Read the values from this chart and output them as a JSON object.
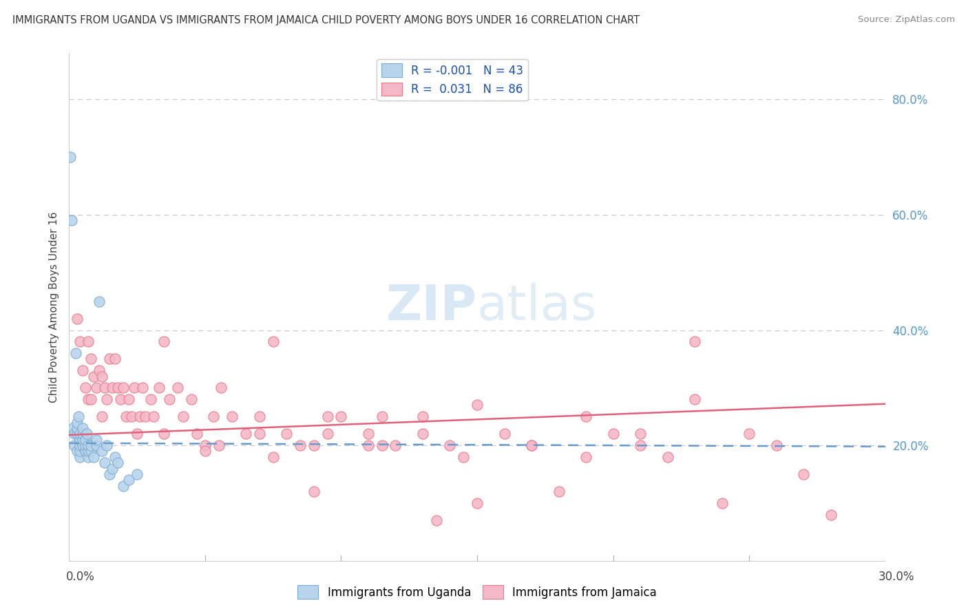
{
  "title": "IMMIGRANTS FROM UGANDA VS IMMIGRANTS FROM JAMAICA CHILD POVERTY AMONG BOYS UNDER 16 CORRELATION CHART",
  "source": "Source: ZipAtlas.com",
  "ylabel": "Child Poverty Among Boys Under 16",
  "legend1_label": "Immigrants from Uganda",
  "legend2_label": "Immigrants from Jamaica",
  "R_uganda": -0.001,
  "N_uganda": 43,
  "R_jamaica": 0.031,
  "N_jamaica": 86,
  "color_uganda_fill": "#b8d4ed",
  "color_uganda_edge": "#7aaace",
  "color_jamaica_fill": "#f5b8c8",
  "color_jamaica_edge": "#e8788a",
  "color_line_uganda": "#6699cc",
  "color_line_jamaica": "#e0607a",
  "xlim": [
    0.0,
    0.3
  ],
  "ylim": [
    0.0,
    0.88
  ],
  "ytick_vals": [
    0.2,
    0.4,
    0.6,
    0.8
  ],
  "ytick_labels": [
    "20.0%",
    "40.0%",
    "60.0%",
    "80.0%"
  ],
  "uganda_x": [
    0.0005,
    0.001,
    0.0015,
    0.002,
    0.002,
    0.0025,
    0.003,
    0.003,
    0.003,
    0.003,
    0.0035,
    0.004,
    0.004,
    0.004,
    0.004,
    0.004,
    0.005,
    0.005,
    0.005,
    0.005,
    0.006,
    0.006,
    0.006,
    0.0065,
    0.007,
    0.007,
    0.007,
    0.008,
    0.008,
    0.009,
    0.01,
    0.01,
    0.011,
    0.012,
    0.013,
    0.014,
    0.015,
    0.016,
    0.017,
    0.018,
    0.02,
    0.022,
    0.025
  ],
  "uganda_y": [
    0.7,
    0.59,
    0.23,
    0.2,
    0.22,
    0.36,
    0.19,
    0.22,
    0.23,
    0.24,
    0.25,
    0.18,
    0.19,
    0.2,
    0.21,
    0.22,
    0.2,
    0.21,
    0.22,
    0.23,
    0.19,
    0.2,
    0.21,
    0.22,
    0.18,
    0.19,
    0.2,
    0.19,
    0.2,
    0.18,
    0.2,
    0.21,
    0.45,
    0.19,
    0.17,
    0.2,
    0.15,
    0.16,
    0.18,
    0.17,
    0.13,
    0.14,
    0.15
  ],
  "jamaica_x": [
    0.003,
    0.004,
    0.005,
    0.006,
    0.007,
    0.007,
    0.008,
    0.008,
    0.009,
    0.01,
    0.011,
    0.012,
    0.012,
    0.013,
    0.014,
    0.015,
    0.016,
    0.017,
    0.018,
    0.019,
    0.02,
    0.021,
    0.022,
    0.023,
    0.024,
    0.025,
    0.026,
    0.027,
    0.028,
    0.03,
    0.031,
    0.033,
    0.035,
    0.037,
    0.04,
    0.042,
    0.045,
    0.047,
    0.05,
    0.053,
    0.056,
    0.06,
    0.065,
    0.07,
    0.075,
    0.08,
    0.085,
    0.09,
    0.095,
    0.1,
    0.11,
    0.115,
    0.12,
    0.13,
    0.14,
    0.145,
    0.15,
    0.16,
    0.17,
    0.18,
    0.19,
    0.2,
    0.21,
    0.22,
    0.23,
    0.24,
    0.25,
    0.26,
    0.27,
    0.28,
    0.05,
    0.07,
    0.09,
    0.11,
    0.13,
    0.15,
    0.17,
    0.19,
    0.21,
    0.23,
    0.035,
    0.055,
    0.075,
    0.095,
    0.115,
    0.135
  ],
  "jamaica_y": [
    0.42,
    0.38,
    0.33,
    0.3,
    0.38,
    0.28,
    0.35,
    0.28,
    0.32,
    0.3,
    0.33,
    0.32,
    0.25,
    0.3,
    0.28,
    0.35,
    0.3,
    0.35,
    0.3,
    0.28,
    0.3,
    0.25,
    0.28,
    0.25,
    0.3,
    0.22,
    0.25,
    0.3,
    0.25,
    0.28,
    0.25,
    0.3,
    0.22,
    0.28,
    0.3,
    0.25,
    0.28,
    0.22,
    0.2,
    0.25,
    0.3,
    0.25,
    0.22,
    0.25,
    0.18,
    0.22,
    0.2,
    0.2,
    0.22,
    0.25,
    0.22,
    0.2,
    0.2,
    0.22,
    0.2,
    0.18,
    0.1,
    0.22,
    0.2,
    0.12,
    0.25,
    0.22,
    0.2,
    0.18,
    0.28,
    0.1,
    0.22,
    0.2,
    0.15,
    0.08,
    0.19,
    0.22,
    0.12,
    0.2,
    0.25,
    0.27,
    0.2,
    0.18,
    0.22,
    0.38,
    0.38,
    0.2,
    0.38,
    0.25,
    0.25,
    0.07
  ],
  "uganda_trendline_intercept": 0.204,
  "uganda_trendline_slope": -0.02,
  "jamaica_trendline_intercept": 0.218,
  "jamaica_trendline_slope": 0.18
}
